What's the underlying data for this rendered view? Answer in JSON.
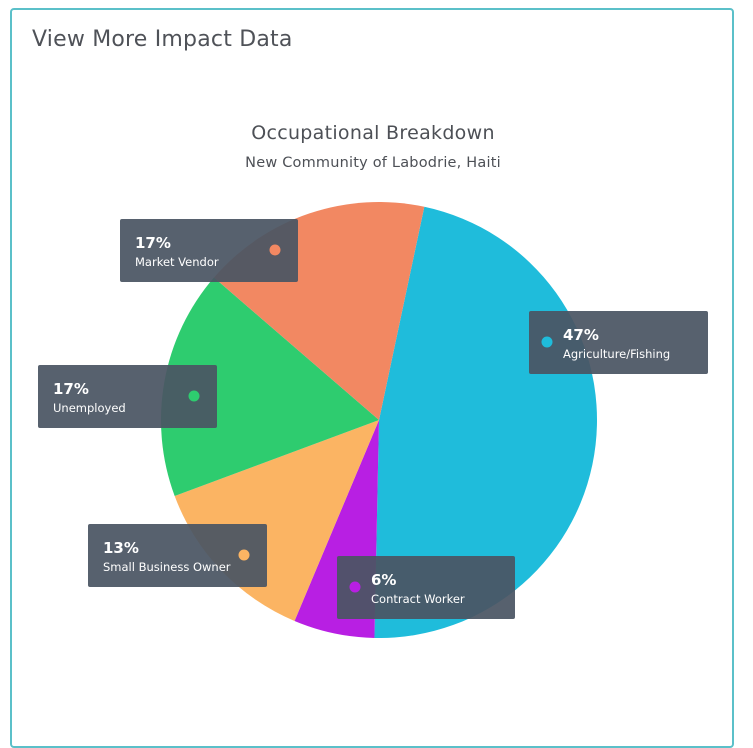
{
  "card": {
    "title": "View More Impact Data"
  },
  "chart_data": {
    "type": "pie",
    "title": "Occupational Breakdown",
    "subtitle": "New Community of Labodrie, Haiti",
    "legend": "callout-labels",
    "slices": [
      {
        "label": "Agriculture/Fishing",
        "value": 47,
        "display": "47%",
        "color": "#1fbcdb"
      },
      {
        "label": "Contract Worker",
        "value": 6,
        "display": "6%",
        "color": "#b81fe3"
      },
      {
        "label": "Small Business Owner",
        "value": 13,
        "display": "13%",
        "color": "#fbb463"
      },
      {
        "label": "Unemployed",
        "value": 17,
        "display": "17%",
        "color": "#2ecc6f"
      },
      {
        "label": "Market Vendor",
        "value": 17,
        "display": "17%",
        "color": "#f28862"
      }
    ]
  },
  "colors": {
    "card_border": "#5bc0c9",
    "label_bg": "#4a5563"
  }
}
